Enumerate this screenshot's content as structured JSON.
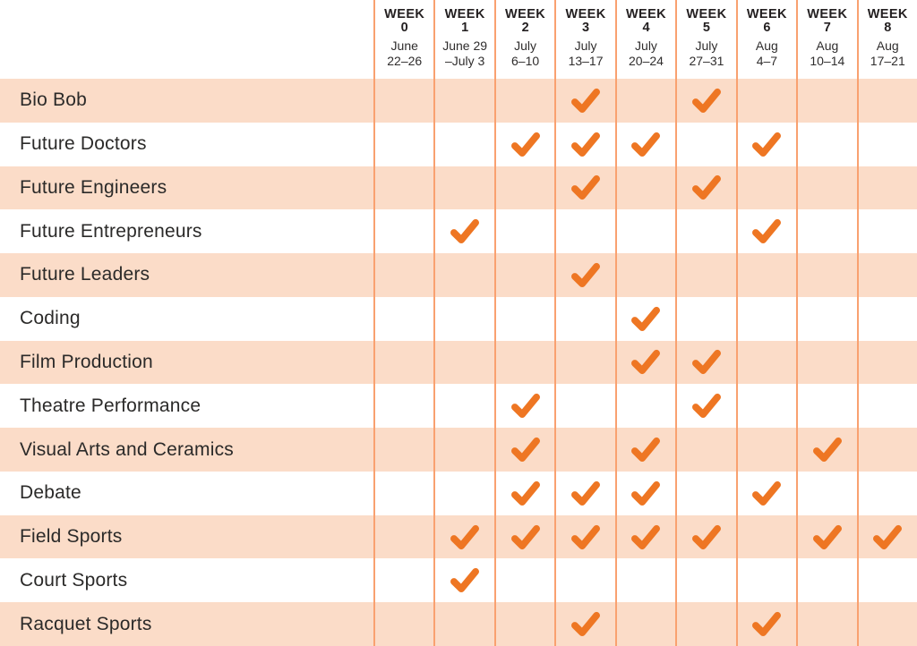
{
  "palette": {
    "check_orange": "#ee7623",
    "row_shade": "#fbdcc8",
    "grid_line": "#f9a170",
    "header_text": "#231f20",
    "label_text": "#2b2a29",
    "background": "#ffffff"
  },
  "header": {
    "week_word": "WEEK",
    "weeks": [
      {
        "number": "0",
        "date_lines": [
          "June",
          "22–26"
        ]
      },
      {
        "number": "1",
        "date_lines": [
          "June 29",
          "–July 3"
        ]
      },
      {
        "number": "2",
        "date_lines": [
          "July",
          "6–10"
        ]
      },
      {
        "number": "3",
        "date_lines": [
          "July",
          "13–17"
        ]
      },
      {
        "number": "4",
        "date_lines": [
          "July",
          "20–24"
        ]
      },
      {
        "number": "5",
        "date_lines": [
          "July",
          "27–31"
        ]
      },
      {
        "number": "6",
        "date_lines": [
          "Aug",
          "4–7"
        ]
      },
      {
        "number": "7",
        "date_lines": [
          "Aug",
          "10–14"
        ]
      },
      {
        "number": "8",
        "date_lines": [
          "Aug",
          "17–21"
        ]
      }
    ]
  },
  "chart_data": {
    "type": "table",
    "categories": [
      "WEEK 0 June 22–26",
      "WEEK 1 June 29–July 3",
      "WEEK 2 July 6–10",
      "WEEK 3 July 13–17",
      "WEEK 4 July 20–24",
      "WEEK 5 July 27–31",
      "WEEK 6 Aug 4–7",
      "WEEK 7 Aug 10–14",
      "WEEK 8 Aug 17–21"
    ],
    "rows": [
      {
        "program": "Bio Bob",
        "checked_weeks": [
          3,
          5
        ]
      },
      {
        "program": "Future Doctors",
        "checked_weeks": [
          2,
          3,
          4,
          6
        ]
      },
      {
        "program": "Future Engineers",
        "checked_weeks": [
          3,
          5
        ]
      },
      {
        "program": "Future Entrepreneurs",
        "checked_weeks": [
          1,
          6
        ]
      },
      {
        "program": "Future Leaders",
        "checked_weeks": [
          3
        ]
      },
      {
        "program": "Coding",
        "checked_weeks": [
          4
        ]
      },
      {
        "program": "Film Production",
        "checked_weeks": [
          4,
          5
        ]
      },
      {
        "program": "Theatre Performance",
        "checked_weeks": [
          2,
          5
        ]
      },
      {
        "program": "Visual Arts and Ceramics",
        "checked_weeks": [
          2,
          4,
          7
        ]
      },
      {
        "program": "Debate",
        "checked_weeks": [
          2,
          3,
          4,
          6
        ]
      },
      {
        "program": "Field Sports",
        "checked_weeks": [
          1,
          2,
          3,
          4,
          5,
          7,
          8
        ]
      },
      {
        "program": "Court Sports",
        "checked_weeks": [
          1
        ]
      },
      {
        "program": "Racquet Sports",
        "checked_weeks": [
          3,
          6
        ]
      }
    ]
  }
}
